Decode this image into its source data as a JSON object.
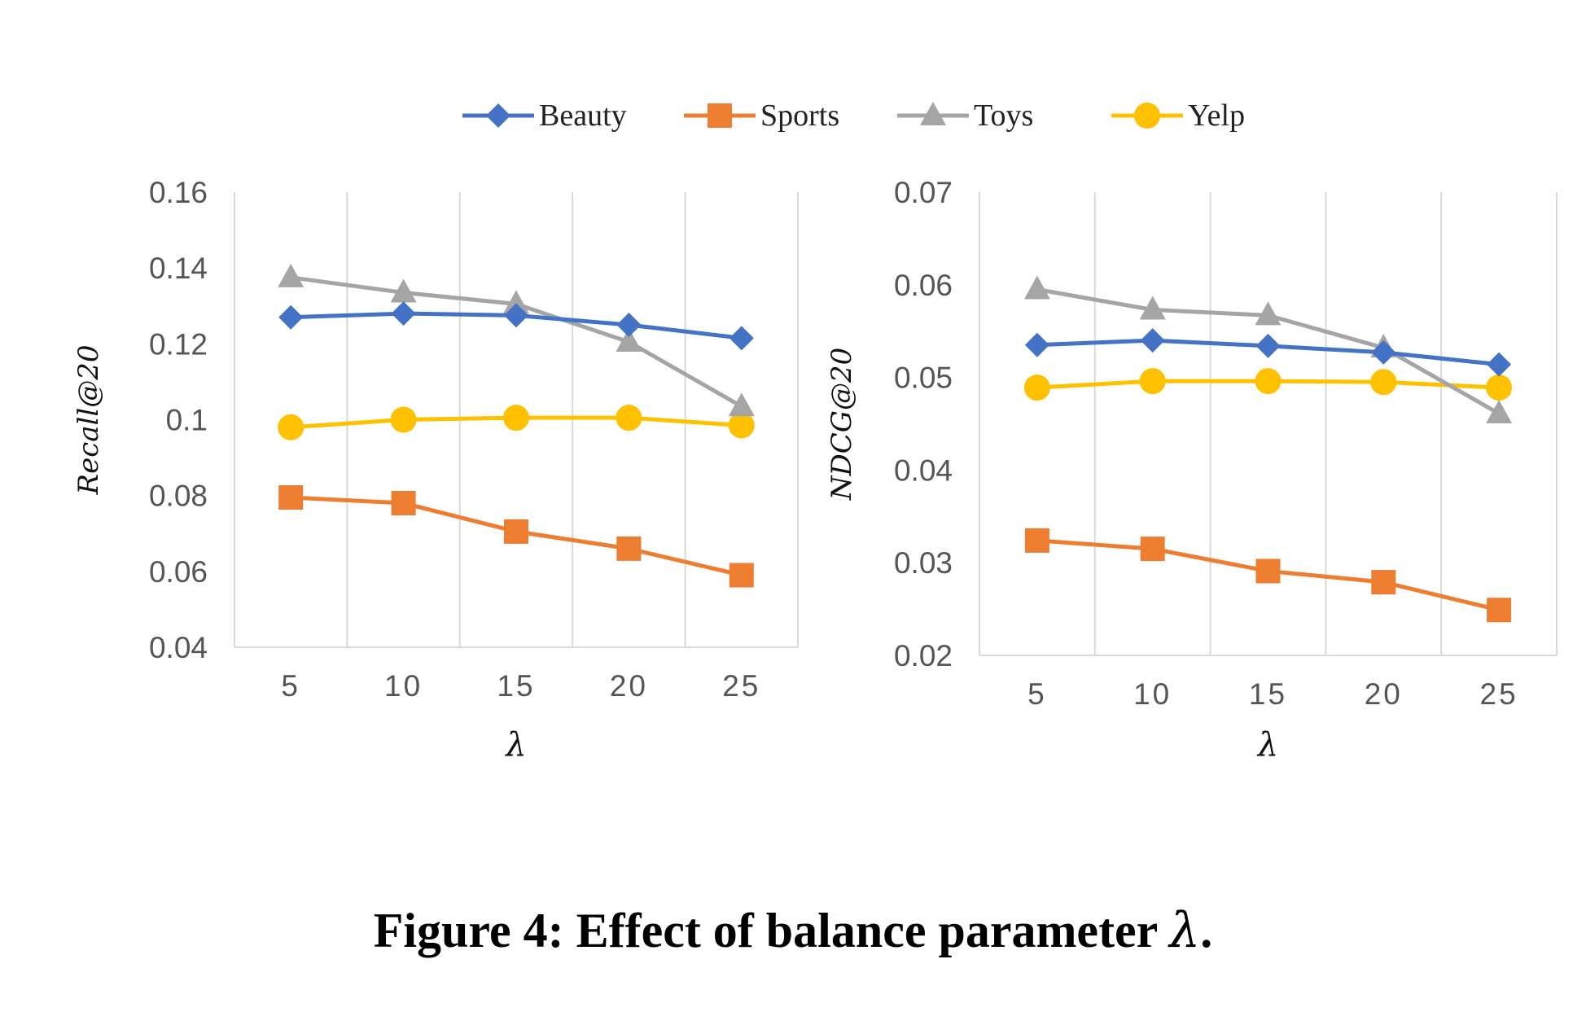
{
  "figure": {
    "caption_prefix": "Figure 4: Effect of balance parameter ",
    "caption_symbol": "λ",
    "caption_suffix": "."
  },
  "legend": [
    {
      "name": "Beauty",
      "color": "#4472C4",
      "marker": "diamond"
    },
    {
      "name": "Sports",
      "color": "#ED7D31",
      "marker": "square"
    },
    {
      "name": "Toys",
      "color": "#A5A5A5",
      "marker": "triangle"
    },
    {
      "name": "Yelp",
      "color": "#FFC000",
      "marker": "circle"
    }
  ],
  "chart_data": [
    {
      "type": "line",
      "xlabel": "λ",
      "ylabel": "Recall@20",
      "categories": [
        "5",
        "10",
        "15",
        "20",
        "25"
      ],
      "ylim": [
        0.04,
        0.16
      ],
      "yticks": [
        "0.16",
        "0.14",
        "0.12",
        "0.1",
        "0.08",
        "0.06",
        "0.04"
      ],
      "ytick_values": [
        0.16,
        0.14,
        0.12,
        0.1,
        0.08,
        0.06,
        0.04
      ],
      "grid": "vertical",
      "series": [
        {
          "name": "Beauty",
          "values": [
            0.127,
            0.128,
            0.1275,
            0.125,
            0.1215
          ]
        },
        {
          "name": "Sports",
          "values": [
            0.0795,
            0.078,
            0.0705,
            0.066,
            0.059
          ]
        },
        {
          "name": "Toys",
          "values": [
            0.1375,
            0.1335,
            0.1305,
            0.1205,
            0.1035
          ]
        },
        {
          "name": "Yelp",
          "values": [
            0.098,
            0.1,
            0.1005,
            0.1005,
            0.0985
          ]
        }
      ]
    },
    {
      "type": "line",
      "xlabel": "λ",
      "ylabel": "NDCG@20",
      "categories": [
        "5",
        "10",
        "15",
        "20",
        "25"
      ],
      "ylim": [
        0.02,
        0.07
      ],
      "yticks": [
        "0.07",
        "0.06",
        "0.05",
        "0.04",
        "0.03",
        "0.02"
      ],
      "ytick_values": [
        0.07,
        0.06,
        0.05,
        0.04,
        0.03,
        0.02
      ],
      "grid": "vertical",
      "series": [
        {
          "name": "Beauty",
          "values": [
            0.0535,
            0.054,
            0.0534,
            0.0527,
            0.0514
          ]
        },
        {
          "name": "Sports",
          "values": [
            0.0324,
            0.0315,
            0.0291,
            0.0279,
            0.0249
          ]
        },
        {
          "name": "Toys",
          "values": [
            0.0595,
            0.0573,
            0.0567,
            0.0532,
            0.0461
          ]
        },
        {
          "name": "Yelp",
          "values": [
            0.0489,
            0.0496,
            0.0496,
            0.0495,
            0.0489
          ]
        }
      ]
    }
  ]
}
